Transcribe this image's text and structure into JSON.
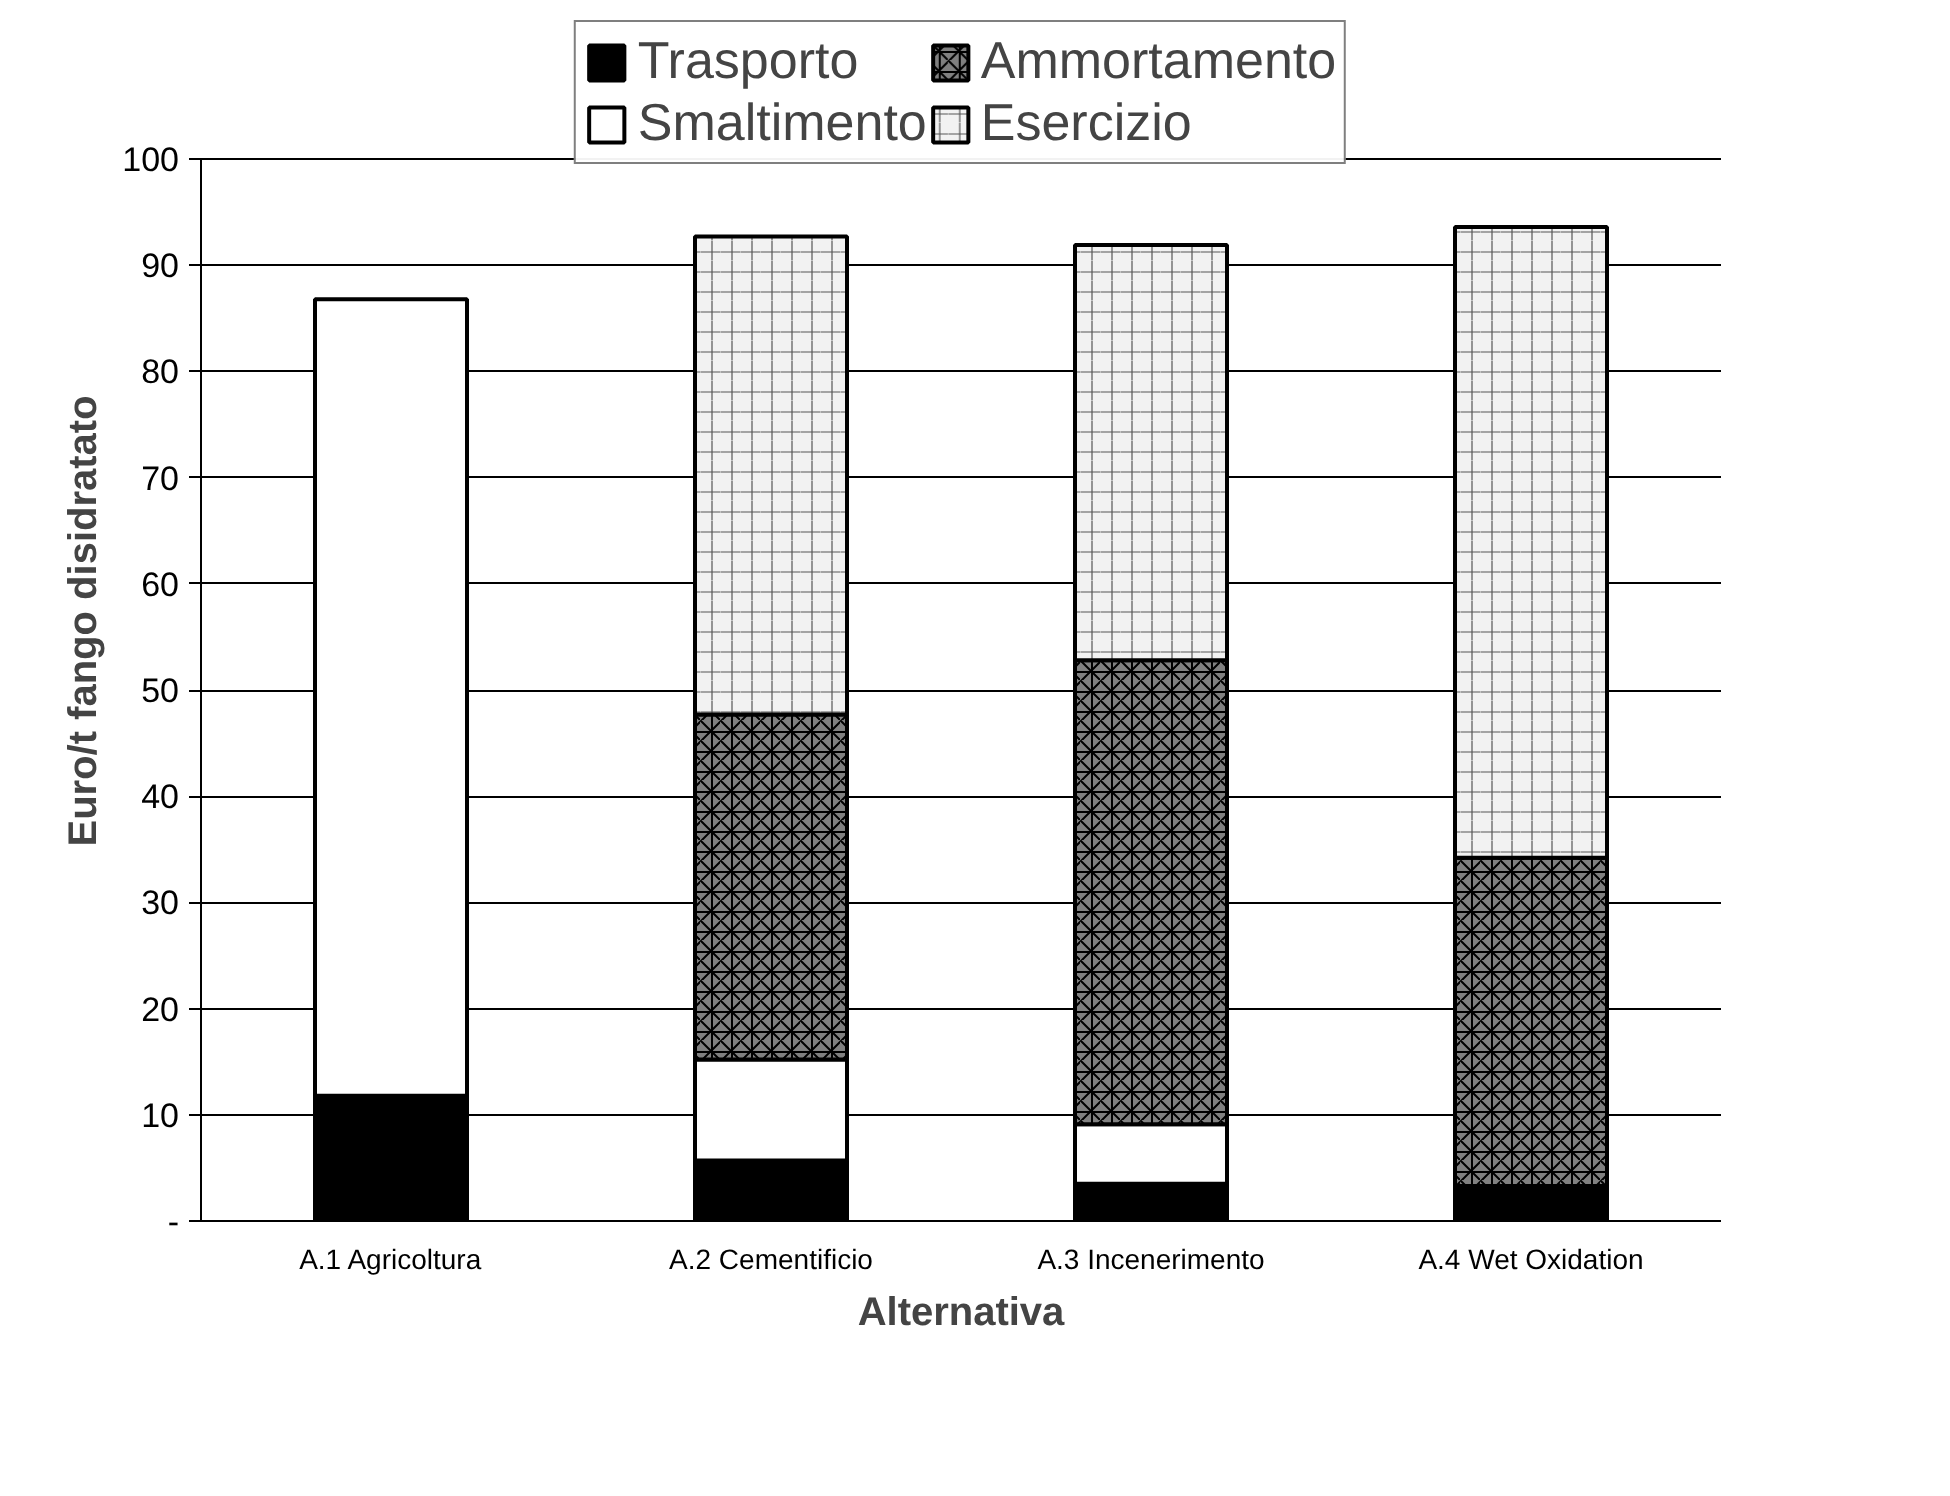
{
  "chart_data": {
    "type": "bar",
    "stacked": true,
    "xlabel": "Alternativa",
    "ylabel": "Euro/t fango disidratato",
    "categories": [
      "A.1 Agricoltura",
      "A.2 Cementificio",
      "A.3 Incenerimento",
      "A.4 Wet Oxidation"
    ],
    "series": [
      {
        "name": "Trasporto",
        "color": "#000000",
        "values": [
          11.8,
          5.7,
          3.5,
          3.3
        ]
      },
      {
        "name": "Smaltimento",
        "color": "#ffffff",
        "values": [
          75,
          9.5,
          5.6,
          null
        ]
      },
      {
        "name": "Ammortamento",
        "color": "#808080",
        "values": [
          null,
          32.5,
          43.7,
          30.9
        ]
      },
      {
        "name": "Esercizio",
        "color": "#f2f2f2",
        "values": [
          null,
          45,
          39.1,
          59.4
        ]
      }
    ],
    "ylim": [
      0,
      100
    ],
    "yticks": [
      {
        "value": 0,
        "label": "-"
      },
      10,
      20,
      30,
      40,
      50,
      60,
      70,
      80,
      90,
      100
    ],
    "grid": "y",
    "legend": "top"
  }
}
